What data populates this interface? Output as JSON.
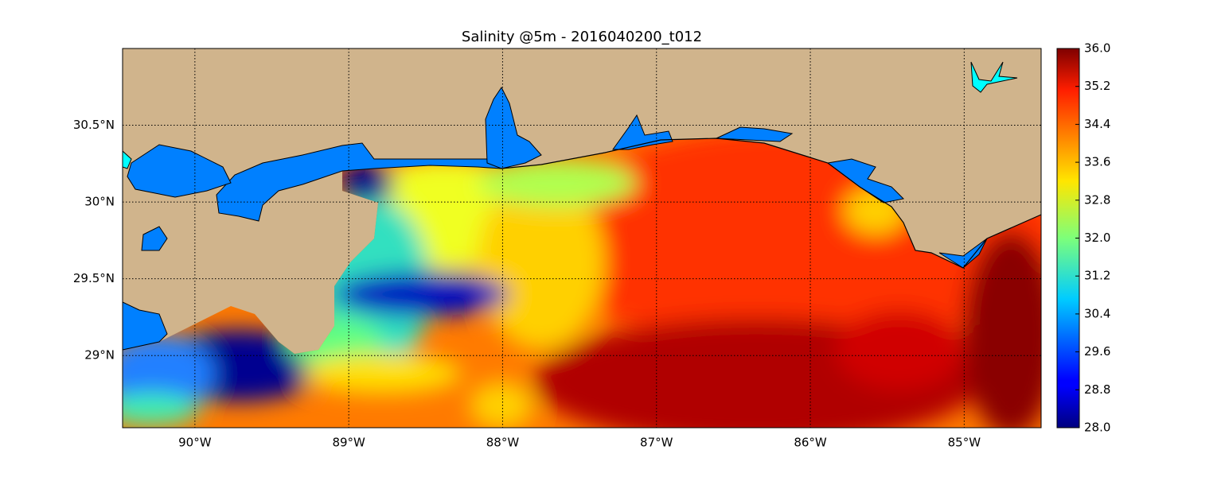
{
  "map": {
    "title": "Salinity @5m - 2016040200_t012",
    "xlim": [
      -90.47,
      -84.5
    ],
    "ylim": [
      28.53,
      31.0
    ],
    "xticks": [
      {
        "value": -90,
        "label": "90°W"
      },
      {
        "value": -89,
        "label": "89°W"
      },
      {
        "value": -88,
        "label": "88°W"
      },
      {
        "value": -87,
        "label": "87°W"
      },
      {
        "value": -86,
        "label": "86°W"
      },
      {
        "value": -85,
        "label": "85°W"
      }
    ],
    "yticks": [
      {
        "value": 29,
        "label": "29°N"
      },
      {
        "value": 29.5,
        "label": "29.5°N"
      },
      {
        "value": 30,
        "label": "30°N"
      },
      {
        "value": 30.5,
        "label": "30.5°N"
      }
    ],
    "colorbar": {
      "range": [
        28,
        36
      ],
      "ticks": [
        {
          "value": 28,
          "label": "28.0"
        },
        28.8,
        29.6,
        30.4,
        31.2,
        {
          "value": 32,
          "label": "32.0"
        },
        32.8,
        33.6,
        34.4,
        35.2,
        {
          "value": 36,
          "label": "36.0"
        }
      ]
    }
  }
}
